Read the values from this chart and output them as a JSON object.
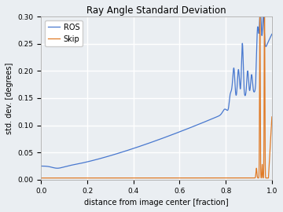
{
  "title": "Ray Angle Standard Deviation",
  "xlabel": "distance from image center [fraction]",
  "ylabel": "std. dev. [degrees]",
  "xlim": [
    0.0,
    1.0
  ],
  "ylim": [
    0.0,
    0.3
  ],
  "yticks": [
    0.0,
    0.05,
    0.1,
    0.15,
    0.2,
    0.25,
    0.3
  ],
  "xticks": [
    0.0,
    0.2,
    0.4,
    0.6,
    0.8,
    1.0
  ],
  "ros_color": "#4878cf",
  "skip_color": "#e07b27",
  "legend_labels": [
    "ROS",
    "Skip"
  ],
  "background_color": "#eaeef2",
  "grid_color": "white",
  "title_fontsize": 8.5,
  "label_fontsize": 7.0,
  "tick_fontsize": 6.5
}
